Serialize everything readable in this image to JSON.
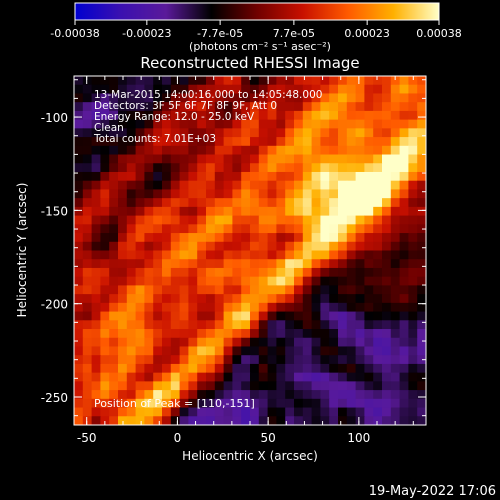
{
  "chart_data": {
    "type": "heatmap",
    "title": "Reconstructed RHESSI Image",
    "colorbar": {
      "ticks": [
        "-0.00038",
        "-0.00023",
        "-7.7e-05",
        "7.7e-05",
        "0.00023",
        "0.00038"
      ],
      "tick_values": [
        -0.00038,
        -0.00023,
        -7.7e-05,
        7.7e-05,
        0.00023,
        0.00038
      ],
      "range": [
        -0.00038,
        0.00038
      ],
      "units_label": "(photons cm⁻² s⁻¹ asec⁻²)",
      "colors": [
        "#0000d0",
        "#3a10b0",
        "#5a1a9a",
        "#000000",
        "#700000",
        "#c81000",
        "#ff5a00",
        "#ffb000",
        "#ffffc8"
      ]
    },
    "xlabel": "Heliocentric X (arcsec)",
    "ylabel": "Heliocentric Y (arcsec)",
    "xlim": [
      -57,
      137
    ],
    "ylim": [
      -265,
      -78
    ],
    "xticks": [
      "-50",
      "0",
      "50",
      "100"
    ],
    "xtick_values": [
      -50,
      0,
      50,
      100
    ],
    "yticks": [
      "-100",
      "-150",
      "-200",
      "-250"
    ],
    "ytick_values": [
      -100,
      -150,
      -200,
      -250
    ],
    "annotations": [
      "13-Mar-2015 14:00:16.000 to 14:05:48.000",
      "Detectors: 3F 5F 6F 7F 8F 9F, Att 0",
      "Energy Range: 12.0 - 25.0 keV",
      "Clean",
      "Total counts: 7.01E+03"
    ],
    "peak_label": "Position of Peak = [110,-151]",
    "peak": [
      110,
      -151
    ],
    "bands": [
      {
        "offset": 255,
        "amp": 1.0
      },
      {
        "offset": 215,
        "amp": 0.75
      },
      {
        "offset": 180,
        "amp": 0.8
      },
      {
        "offset": 140,
        "amp": 0.65
      },
      {
        "offset": 95,
        "amp": 0.55
      }
    ]
  },
  "footer": {
    "timestamp": "19-May-2022 17:06"
  }
}
